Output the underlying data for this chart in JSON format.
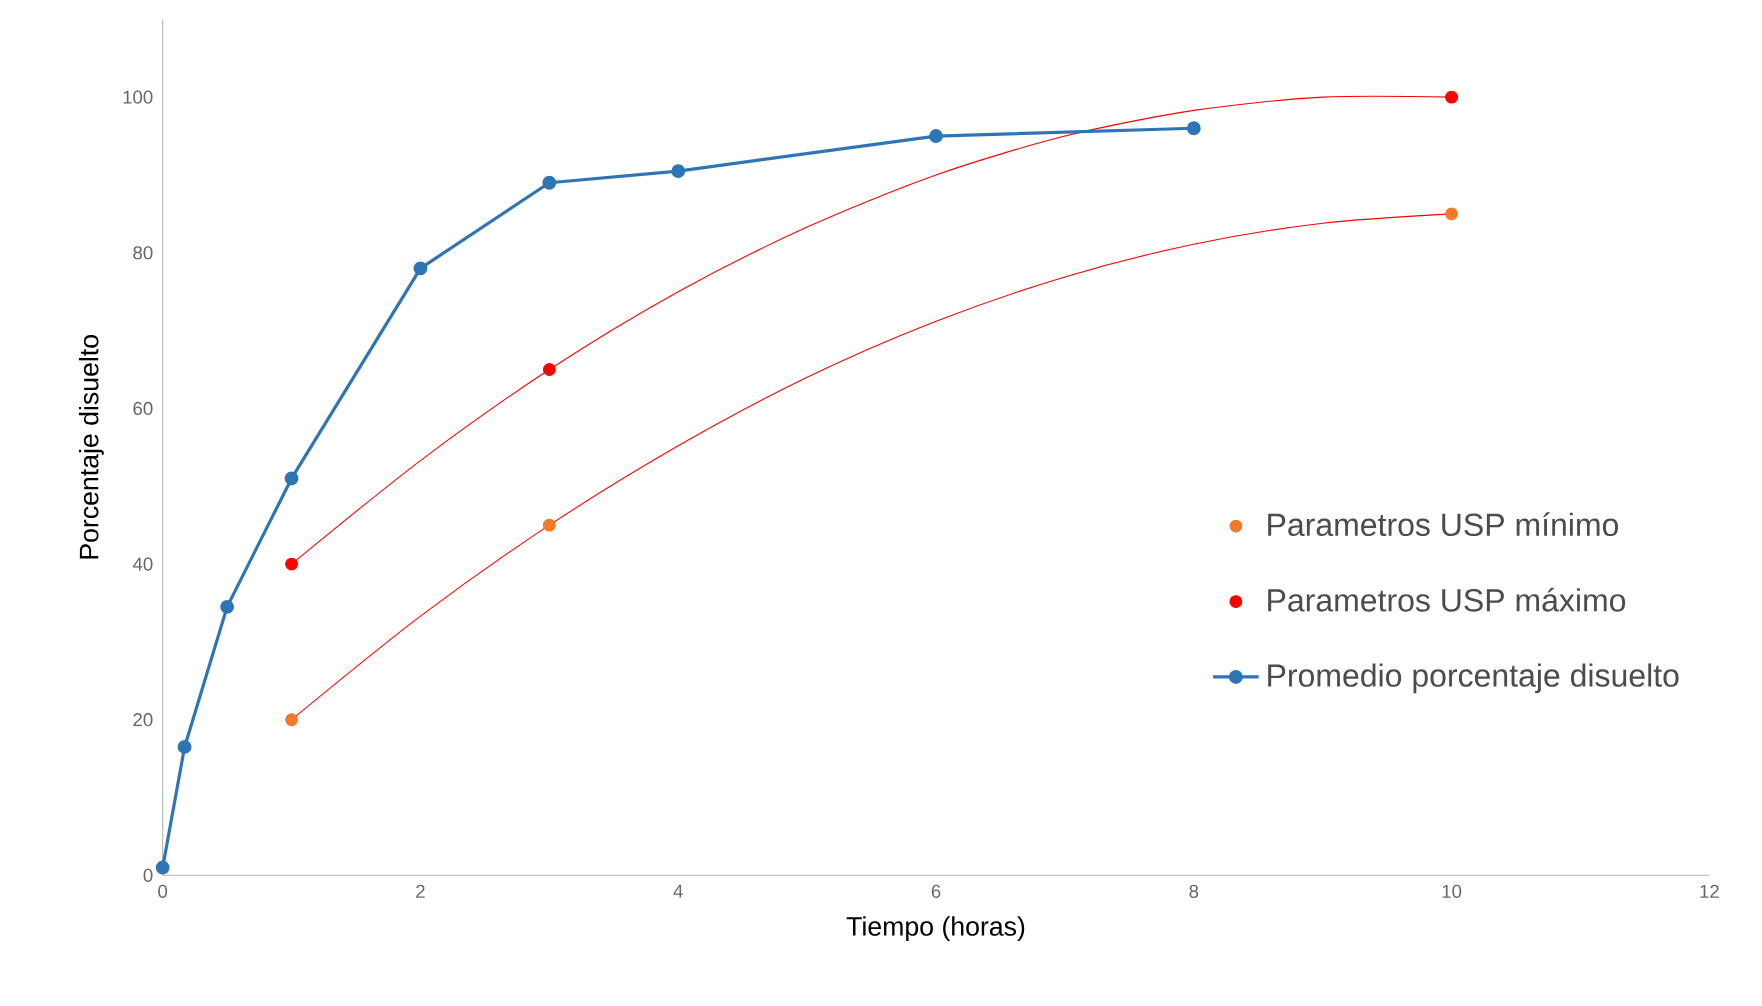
{
  "chart_data": {
    "type": "line",
    "xlabel": "Tiempo (horas)",
    "ylabel": "Porcentaje disuelto",
    "xlim": [
      0,
      12
    ],
    "ylim": [
      0,
      110
    ],
    "xticks": [
      0,
      2,
      4,
      6,
      8,
      10,
      12
    ],
    "yticks": [
      0,
      20,
      40,
      60,
      80,
      100
    ],
    "legend": "right",
    "series": [
      {
        "color": "#ff0000",
        "marker": "none",
        "x": [
          1,
          2,
          3,
          4,
          5,
          6,
          7,
          8,
          9,
          10
        ],
        "values": [
          20,
          33.3,
          45,
          55.2,
          64,
          71.2,
          76.9,
          81.1,
          83.8,
          85
        ]
      },
      {
        "color": "#ff0000",
        "marker": "none",
        "x": [
          1,
          2,
          3,
          4,
          5,
          6,
          7,
          8,
          9,
          10
        ],
        "values": [
          40,
          53.3,
          65,
          75,
          83.3,
          90,
          95,
          98.3,
          100,
          100
        ]
      },
      {
        "type": "scatter",
        "name": "Parametros USP mínimo",
        "color": "#f4792b",
        "marker": "circle",
        "x": [
          1,
          3,
          10
        ],
        "values": [
          20,
          45,
          85
        ]
      },
      {
        "type": "scatter",
        "name": "Parametros USP máximo",
        "color": "#ff0000",
        "marker": "circle",
        "x": [
          1,
          3,
          10
        ],
        "values": [
          40,
          65,
          100
        ]
      },
      {
        "name": "Promedio porcentaje disuelto",
        "color": "#2e75b6",
        "marker": "circle",
        "x": [
          0,
          0.17,
          0.5,
          1,
          2,
          3,
          4,
          6,
          8
        ],
        "values": [
          1,
          16.5,
          34.5,
          51,
          78,
          89,
          90.5,
          95,
          96
        ]
      }
    ]
  }
}
